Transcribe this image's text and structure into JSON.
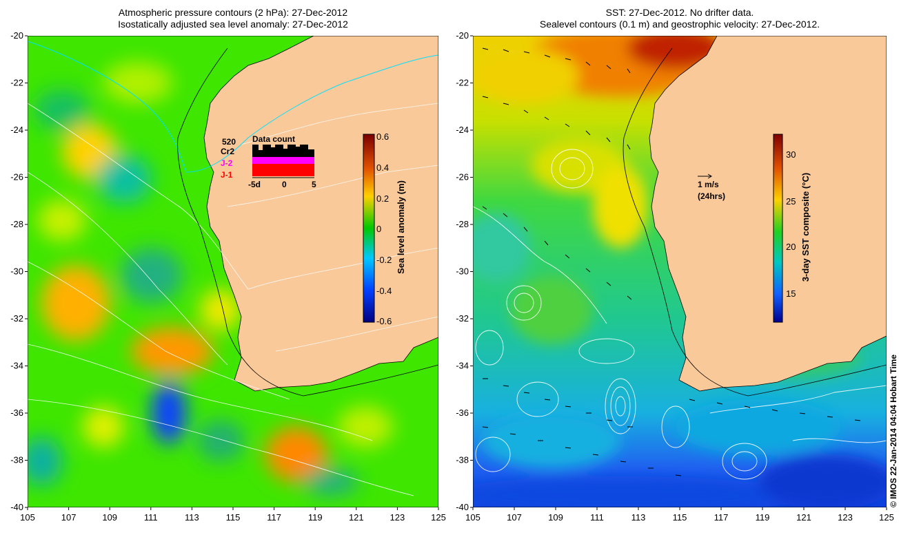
{
  "left_panel": {
    "title_line1": "Atmospheric pressure contours (2 hPa): 27-Dec-2012",
    "title_line2": "Isostatically adjusted sea level anomaly: 27-Dec-2012",
    "colorbar_label": "Sea level anomaly (m)",
    "colorbar_ticks": [
      "0.6",
      "0.4",
      "0.2",
      "0",
      "-0.2",
      "-0.4",
      "-0.6"
    ],
    "data_count": {
      "title": "Data count",
      "total": "520",
      "series": [
        "Cr2",
        "J-2",
        "J-1"
      ],
      "series_colors": [
        "#000000",
        "#ff00ff",
        "#ff0000"
      ],
      "x_ticks": [
        "-5d",
        "0",
        "5"
      ]
    }
  },
  "right_panel": {
    "title_line1": "SST: 27-Dec-2012. No drifter data.",
    "title_line2": "Sealevel contours (0.1 m) and geostrophic velocity: 27-Dec-2012.",
    "colorbar_label": "3-day SST composite (°C)",
    "colorbar_ticks": [
      "30",
      "25",
      "20",
      "15"
    ],
    "velocity_scale": "1 m/s",
    "velocity_scale_note": "(24hrs)"
  },
  "axes": {
    "x_ticks": [
      "105",
      "107",
      "109",
      "111",
      "113",
      "115",
      "117",
      "119",
      "121",
      "123",
      "125"
    ],
    "y_ticks": [
      "-20",
      "-22",
      "-24",
      "-26",
      "-28",
      "-30",
      "-32",
      "-34",
      "-36",
      "-38",
      "-40"
    ]
  },
  "credit": "© IMOS 22-Jan-2014 04:04 Hobart Time",
  "colors": {
    "land": "#fac99a",
    "sla_background": "#3ee600",
    "sst_background": "#2fd648"
  }
}
